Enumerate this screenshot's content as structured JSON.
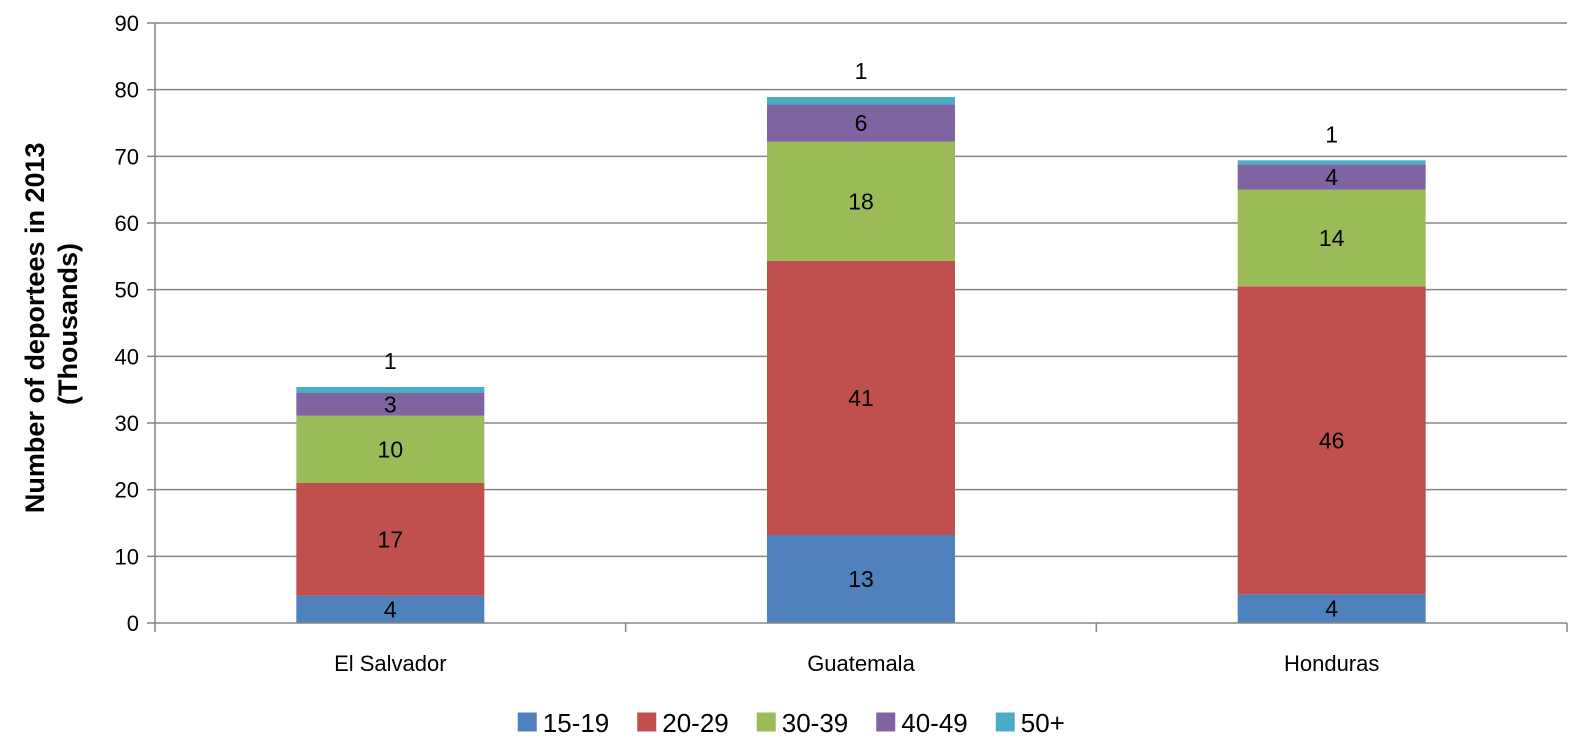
{
  "chart_data": {
    "type": "bar",
    "stacked": true,
    "title": "",
    "xlabel": "",
    "ylabel_lines": [
      "Number of deportees in 2013",
      "(Thousands)"
    ],
    "ylim": [
      0,
      90
    ],
    "yticks": [
      0,
      10,
      20,
      30,
      40,
      50,
      60,
      70,
      80,
      90
    ],
    "grid": true,
    "legend_position": "bottom",
    "categories": [
      "El Salvador",
      "Guatemala",
      "Honduras"
    ],
    "series": [
      {
        "name": "15-19",
        "color": "#4F81BD",
        "values": [
          4.1,
          13.2,
          4.3
        ],
        "labels": [
          "4",
          "13",
          "4"
        ]
      },
      {
        "name": "20-29",
        "color": "#C0504D",
        "values": [
          16.9,
          41.1,
          46.2
        ],
        "labels": [
          "17",
          "41",
          "46"
        ]
      },
      {
        "name": "30-39",
        "color": "#9BBB59",
        "values": [
          10.1,
          17.9,
          14.5
        ],
        "labels": [
          "10",
          "18",
          "14"
        ]
      },
      {
        "name": "40-49",
        "color": "#8064A2",
        "values": [
          3.4,
          5.6,
          3.8
        ],
        "labels": [
          "3",
          "6",
          "4"
        ]
      },
      {
        "name": "50+",
        "color": "#4BACC6",
        "values": [
          0.9,
          1.1,
          0.6
        ],
        "labels": [
          "1",
          "1",
          "1"
        ]
      }
    ]
  }
}
